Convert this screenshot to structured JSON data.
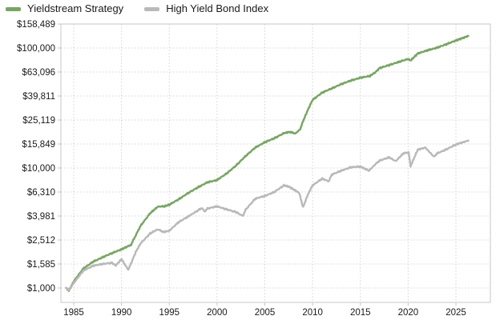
{
  "legend": {
    "items": [
      {
        "label": "Yieldstream Strategy",
        "color": "#74a85e"
      },
      {
        "label": "High Yield Bond Index",
        "color": "#b9b9b9"
      }
    ]
  },
  "chart_data": {
    "type": "line",
    "title": "",
    "xlabel": "",
    "ylabel": "",
    "grid": true,
    "legend_position": "top-left",
    "x_axis": {
      "range": [
        1983.7,
        2028.6
      ],
      "tick_labels": [
        "1985",
        "1990",
        "1995",
        "2000",
        "2005",
        "2010",
        "2015",
        "2020",
        "2025"
      ],
      "tick_values": [
        1985,
        1990,
        1995,
        2000,
        2005,
        2010,
        2015,
        2020,
        2025
      ]
    },
    "y_axis": {
      "scale": "log",
      "unit": "$",
      "range": [
        760,
        158489
      ],
      "ticks": [
        {
          "label": "$158,489",
          "value": 158489
        },
        {
          "label": "$100,000",
          "value": 100000
        },
        {
          "label": "$63,096",
          "value": 63096
        },
        {
          "label": "$39,811",
          "value": 39811
        },
        {
          "label": "$25,119",
          "value": 25119
        },
        {
          "label": "$15,849",
          "value": 15849
        },
        {
          "label": "$10,000",
          "value": 10000
        },
        {
          "label": "$6,310",
          "value": 6310
        },
        {
          "label": "$3,981",
          "value": 3981
        },
        {
          "label": "$2,512",
          "value": 2512
        },
        {
          "label": "$1,585",
          "value": 1585
        },
        {
          "label": "$1,000",
          "value": 1000
        }
      ]
    },
    "series": [
      {
        "name": "Yieldstream Strategy",
        "color": "#74a85e",
        "start_value": 1000,
        "end_value": 126000,
        "points": [
          [
            1984.2,
            1000
          ],
          [
            1984.5,
            950
          ],
          [
            1985,
            1135
          ],
          [
            1986,
            1450
          ],
          [
            1987,
            1650
          ],
          [
            1988,
            1800
          ],
          [
            1989,
            1950
          ],
          [
            1990,
            2100
          ],
          [
            1990.8,
            2250
          ],
          [
            1991,
            2300
          ],
          [
            1992,
            3300
          ],
          [
            1993,
            4200
          ],
          [
            1993.8,
            4760
          ],
          [
            1994.5,
            4800
          ],
          [
            1995,
            4940
          ],
          [
            1996,
            5500
          ],
          [
            1997,
            6200
          ],
          [
            1998,
            6900
          ],
          [
            1999,
            7600
          ],
          [
            2000,
            7940
          ],
          [
            2001,
            9000
          ],
          [
            2002,
            10500
          ],
          [
            2003,
            12600
          ],
          [
            2004,
            14800
          ],
          [
            2005,
            16400
          ],
          [
            2006,
            17700
          ],
          [
            2007,
            19500
          ],
          [
            2007.6,
            20000
          ],
          [
            2008.2,
            19400
          ],
          [
            2008.7,
            21000
          ],
          [
            2009,
            24500
          ],
          [
            2009.5,
            30500
          ],
          [
            2010,
            36900
          ],
          [
            2011,
            42500
          ],
          [
            2012,
            46000
          ],
          [
            2013,
            50000
          ],
          [
            2014,
            53500
          ],
          [
            2015,
            56500
          ],
          [
            2016,
            58500
          ],
          [
            2016.6,
            63000
          ],
          [
            2017,
            68000
          ],
          [
            2018,
            72000
          ],
          [
            2019,
            76500
          ],
          [
            2020,
            81000
          ],
          [
            2020.25,
            78500
          ],
          [
            2021,
            90000
          ],
          [
            2022,
            95500
          ],
          [
            2023,
            100500
          ],
          [
            2024,
            107500
          ],
          [
            2025,
            115500
          ],
          [
            2026.3,
            126000
          ]
        ]
      },
      {
        "name": "High Yield Bond Index",
        "color": "#b9b9b9",
        "start_value": 1000,
        "end_value": 16940,
        "points": [
          [
            1984.2,
            1000
          ],
          [
            1984.5,
            960
          ],
          [
            1985,
            1100
          ],
          [
            1986,
            1390
          ],
          [
            1987,
            1530
          ],
          [
            1988,
            1585
          ],
          [
            1989,
            1620
          ],
          [
            1989.4,
            1540
          ],
          [
            1990,
            1740
          ],
          [
            1990.7,
            1420
          ],
          [
            1991,
            1600
          ],
          [
            1991.5,
            2000
          ],
          [
            1992,
            2350
          ],
          [
            1993,
            2850
          ],
          [
            1993.8,
            3080
          ],
          [
            1994.4,
            2930
          ],
          [
            1995,
            3000
          ],
          [
            1996,
            3550
          ],
          [
            1997,
            3950
          ],
          [
            1998.4,
            4640
          ],
          [
            1998.7,
            4340
          ],
          [
            1999,
            4600
          ],
          [
            2000,
            4790
          ],
          [
            2001,
            4520
          ],
          [
            2002,
            4290
          ],
          [
            2002.7,
            3990
          ],
          [
            2003,
            4500
          ],
          [
            2004,
            5550
          ],
          [
            2005,
            5850
          ],
          [
            2006,
            6310
          ],
          [
            2007,
            7160
          ],
          [
            2007.5,
            7000
          ],
          [
            2008,
            6630
          ],
          [
            2008.6,
            6200
          ],
          [
            2009,
            4700
          ],
          [
            2009.5,
            6000
          ],
          [
            2010,
            7170
          ],
          [
            2011,
            8150
          ],
          [
            2011.7,
            7740
          ],
          [
            2012,
            8800
          ],
          [
            2013,
            9500
          ],
          [
            2014,
            10150
          ],
          [
            2015,
            10280
          ],
          [
            2015.9,
            9500
          ],
          [
            2016.7,
            11000
          ],
          [
            2017,
            11500
          ],
          [
            2018,
            12270
          ],
          [
            2018.7,
            11400
          ],
          [
            2019.5,
            13250
          ],
          [
            2020.05,
            13500
          ],
          [
            2020.25,
            10300
          ],
          [
            2021,
            14200
          ],
          [
            2021.8,
            14800
          ],
          [
            2022.7,
            12400
          ],
          [
            2023,
            13200
          ],
          [
            2024,
            14300
          ],
          [
            2025,
            15700
          ],
          [
            2026.3,
            16940
          ]
        ]
      }
    ]
  },
  "style": {
    "plot_border_color": "#c7c7c7",
    "gridline_color": "#dddddd",
    "tick_label_color": "#1a1a1a"
  }
}
